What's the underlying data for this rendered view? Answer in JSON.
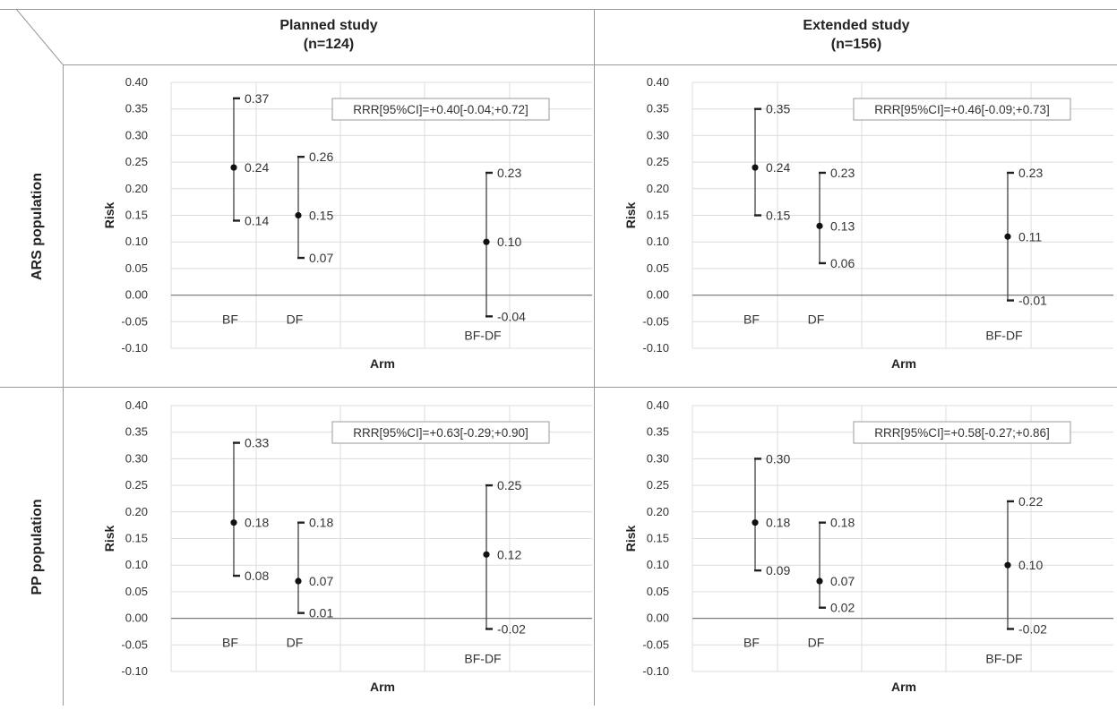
{
  "column_headers": [
    {
      "title": "Planned study",
      "n": "(n=124)"
    },
    {
      "title": "Extended study",
      "n": "(n=156)"
    }
  ],
  "row_headers": [
    "ARS population",
    "PP population"
  ],
  "chart_data": [
    {
      "type": "errorbar",
      "row": "ARS population",
      "column": "Planned study",
      "ylabel": "Risk",
      "xlabel": "Arm",
      "ylim": [
        -0.1,
        0.4
      ],
      "yticks": [
        "0.40",
        "0.35",
        "0.30",
        "0.25",
        "0.20",
        "0.15",
        "0.10",
        "0.05",
        "0.00",
        "-0.05",
        "-0.10"
      ],
      "grid": true,
      "annotation": "RRR[95%CI]=+0.40[-0.04;+0.72]",
      "points": [
        {
          "category": "BF",
          "estimate": 0.24,
          "lower": 0.14,
          "upper": 0.37,
          "estimate_label": "0.24",
          "lower_label": "0.14",
          "upper_label": "0.37"
        },
        {
          "category": "DF",
          "estimate": 0.15,
          "lower": 0.07,
          "upper": 0.26,
          "estimate_label": "0.15",
          "lower_label": "0.07",
          "upper_label": "0.26"
        },
        {
          "category": "BF-DF",
          "estimate": 0.1,
          "lower": -0.04,
          "upper": 0.23,
          "estimate_label": "0.10",
          "lower_label": "-0.04",
          "upper_label": "0.23"
        }
      ]
    },
    {
      "type": "errorbar",
      "row": "ARS population",
      "column": "Extended study",
      "ylabel": "Risk",
      "xlabel": "Arm",
      "ylim": [
        -0.1,
        0.4
      ],
      "yticks": [
        "0.40",
        "0.35",
        "0.30",
        "0.25",
        "0.20",
        "0.15",
        "0.10",
        "0.05",
        "0.00",
        "-0.05",
        "-0.10"
      ],
      "grid": true,
      "annotation": "RRR[95%CI]=+0.46[-0.09;+0.73]",
      "points": [
        {
          "category": "BF",
          "estimate": 0.24,
          "lower": 0.15,
          "upper": 0.35,
          "estimate_label": "0.24",
          "lower_label": "0.15",
          "upper_label": "0.35"
        },
        {
          "category": "DF",
          "estimate": 0.13,
          "lower": 0.06,
          "upper": 0.23,
          "estimate_label": "0.13",
          "lower_label": "0.06",
          "upper_label": "0.23"
        },
        {
          "category": "BF-DF",
          "estimate": 0.11,
          "lower": -0.01,
          "upper": 0.23,
          "estimate_label": "0.11",
          "lower_label": "-0.01",
          "upper_label": "0.23"
        }
      ]
    },
    {
      "type": "errorbar",
      "row": "PP population",
      "column": "Planned study",
      "ylabel": "Risk",
      "xlabel": "Arm",
      "ylim": [
        -0.1,
        0.4
      ],
      "yticks": [
        "0.40",
        "0.35",
        "0.30",
        "0.25",
        "0.20",
        "0.15",
        "0.10",
        "0.05",
        "0.00",
        "-0.05",
        "-0.10"
      ],
      "grid": true,
      "annotation": "RRR[95%CI]=+0.63[-0.29;+0.90]",
      "points": [
        {
          "category": "BF",
          "estimate": 0.18,
          "lower": 0.08,
          "upper": 0.33,
          "estimate_label": "0.18",
          "lower_label": "0.08",
          "upper_label": "0.33"
        },
        {
          "category": "DF",
          "estimate": 0.07,
          "lower": 0.01,
          "upper": 0.18,
          "estimate_label": "0.07",
          "lower_label": "0.01",
          "upper_label": "0.18"
        },
        {
          "category": "BF-DF",
          "estimate": 0.12,
          "lower": -0.02,
          "upper": 0.25,
          "estimate_label": "0.12",
          "lower_label": "-0.02",
          "upper_label": "0.25"
        }
      ]
    },
    {
      "type": "errorbar",
      "row": "PP population",
      "column": "Extended study",
      "ylabel": "Risk",
      "xlabel": "Arm",
      "ylim": [
        -0.1,
        0.4
      ],
      "yticks": [
        "0.40",
        "0.35",
        "0.30",
        "0.25",
        "0.20",
        "0.15",
        "0.10",
        "0.05",
        "0.00",
        "-0.05",
        "-0.10"
      ],
      "grid": true,
      "annotation": "RRR[95%CI]=+0.58[-0.27;+0.86]",
      "points": [
        {
          "category": "BF",
          "estimate": 0.18,
          "lower": 0.09,
          "upper": 0.3,
          "estimate_label": "0.18",
          "lower_label": "0.09",
          "upper_label": "0.30"
        },
        {
          "category": "DF",
          "estimate": 0.07,
          "lower": 0.02,
          "upper": 0.18,
          "estimate_label": "0.07",
          "lower_label": "0.02",
          "upper_label": "0.18"
        },
        {
          "category": "BF-DF",
          "estimate": 0.1,
          "lower": -0.02,
          "upper": 0.22,
          "estimate_label": "0.10",
          "lower_label": "-0.02",
          "upper_label": "0.22"
        }
      ]
    }
  ]
}
